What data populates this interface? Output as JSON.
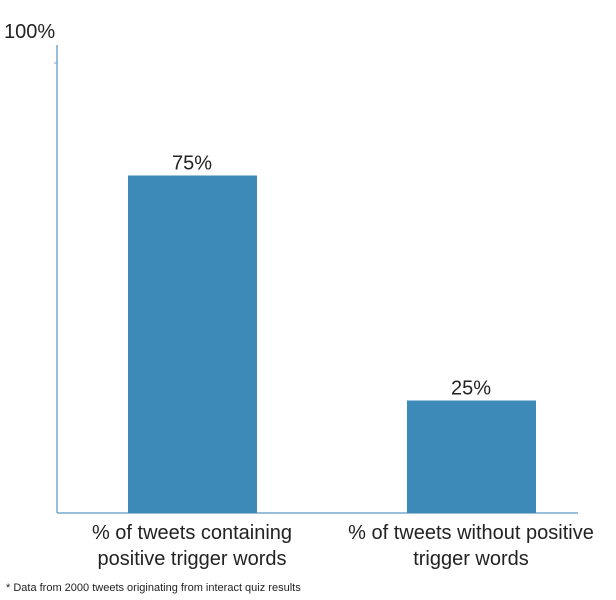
{
  "chart_data": {
    "type": "bar",
    "categories": [
      "% of tweets containing positive trigger words",
      "% of tweets without positive trigger words"
    ],
    "values": [
      75,
      25
    ],
    "value_labels": [
      "75%",
      "25%"
    ],
    "color": "#3d8ab9",
    "ylim": [
      0,
      104
    ],
    "yticks": [
      {
        "value": 100,
        "label": "100%"
      }
    ],
    "grid": false,
    "footnote": "* Data from 2000 tweets originating from interact quiz results"
  }
}
